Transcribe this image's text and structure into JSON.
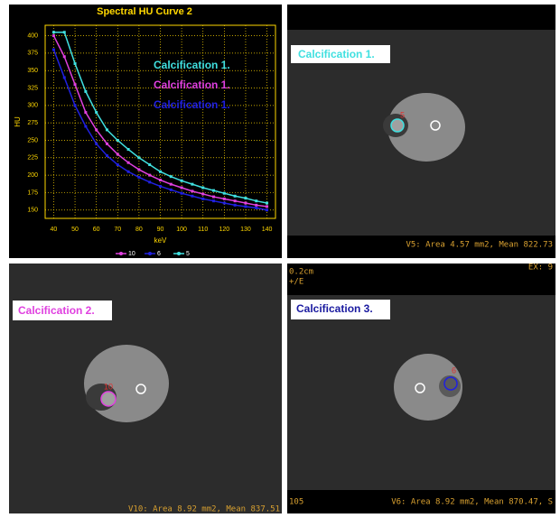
{
  "chart_data": {
    "type": "line",
    "title": "Spectral HU Curve 2",
    "x_label": "keV",
    "y_label": "HU",
    "x": [
      40,
      45,
      50,
      55,
      60,
      65,
      70,
      75,
      80,
      85,
      90,
      95,
      100,
      105,
      110,
      115,
      120,
      125,
      130,
      135,
      140
    ],
    "series": [
      {
        "name": "10",
        "color": "#e040e0",
        "values": [
          400,
          370,
          330,
          290,
          265,
          245,
          230,
          218,
          208,
          200,
          193,
          187,
          182,
          177,
          173,
          169,
          166,
          163,
          160,
          157,
          155
        ]
      },
      {
        "name": "6",
        "color": "#2020e0",
        "values": [
          380,
          340,
          300,
          270,
          245,
          228,
          215,
          205,
          197,
          190,
          184,
          179,
          174,
          170,
          166,
          163,
          160,
          157,
          155,
          153,
          150
        ]
      },
      {
        "name": "5",
        "color": "#40e0e0",
        "values": [
          405,
          405,
          360,
          320,
          290,
          265,
          250,
          237,
          225,
          215,
          205,
          198,
          192,
          187,
          182,
          178,
          174,
          170,
          167,
          163,
          160
        ]
      }
    ],
    "xlim": [
      36,
      144
    ],
    "xticks": [
      40,
      50,
      60,
      70,
      80,
      90,
      100,
      110,
      120,
      130,
      140
    ],
    "ylim": [
      138,
      415
    ],
    "yticks": [
      150,
      175,
      200,
      225,
      250,
      275,
      300,
      325,
      350,
      375,
      400
    ],
    "grid": true,
    "annotations": [
      {
        "text": "Calcification 1.",
        "color": "#40e0e0"
      },
      {
        "text": "Calcification 1.",
        "color": "#e040e0"
      },
      {
        "text": "Calcification 1.",
        "color": "#2020e0"
      }
    ]
  },
  "panels": [
    {
      "label": "Calcification 1.",
      "roi": "5",
      "footer": "V5: Area 4.57 mm2, Mean 822.73"
    },
    {
      "label": "Calcification 2.",
      "roi": "10",
      "footer": "V10: Area 8.92 mm2, Mean 837.51"
    },
    {
      "label": "Calcification 3.",
      "roi": "6",
      "footer": "V6: Area 8.92 mm2, Mean 870.47, S",
      "corner_top_left": "0.2cm",
      "corner_top_left_2": "+/E",
      "corner_top_right": "EX: 9",
      "corner_bottom_left": "105"
    }
  ]
}
